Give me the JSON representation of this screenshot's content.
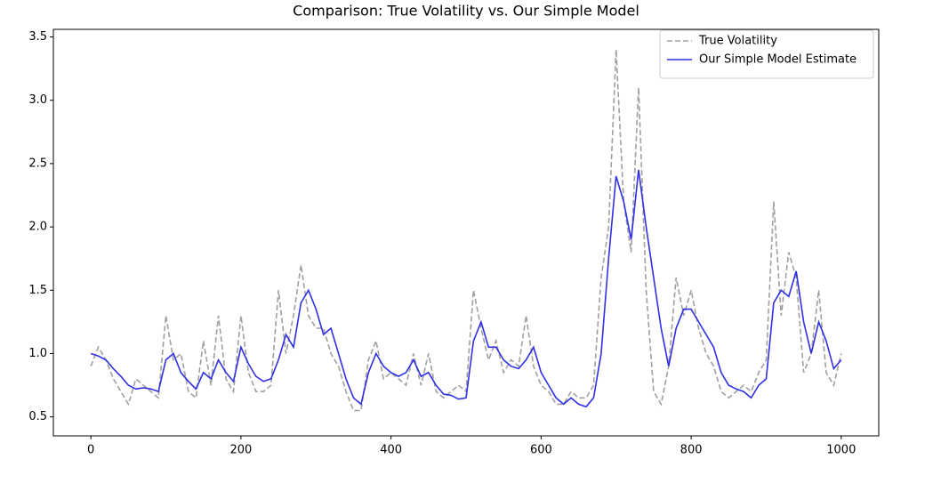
{
  "chart_data": {
    "type": "line",
    "title": "Comparison: True Volatility vs. Our Simple Model",
    "x": [
      0,
      10,
      20,
      30,
      40,
      50,
      60,
      70,
      80,
      90,
      100,
      110,
      120,
      130,
      140,
      150,
      160,
      170,
      180,
      190,
      200,
      210,
      220,
      230,
      240,
      250,
      260,
      270,
      280,
      290,
      300,
      310,
      320,
      330,
      340,
      350,
      360,
      370,
      380,
      390,
      400,
      410,
      420,
      430,
      440,
      450,
      460,
      470,
      480,
      490,
      500,
      510,
      520,
      530,
      540,
      550,
      560,
      570,
      580,
      590,
      600,
      610,
      620,
      630,
      640,
      650,
      660,
      670,
      680,
      690,
      700,
      710,
      720,
      730,
      740,
      750,
      760,
      770,
      780,
      790,
      800,
      810,
      820,
      830,
      840,
      850,
      860,
      870,
      880,
      890,
      900,
      910,
      920,
      930,
      940,
      950,
      960,
      970,
      980,
      990,
      1000
    ],
    "series": [
      {
        "name": "True Volatility",
        "color": "#a0a0a0",
        "linestyle": "dashed",
        "values": [
          0.9,
          1.05,
          0.95,
          0.8,
          0.7,
          0.6,
          0.8,
          0.75,
          0.7,
          0.65,
          1.3,
          0.95,
          1.0,
          0.7,
          0.65,
          1.1,
          0.75,
          1.3,
          0.8,
          0.7,
          1.3,
          0.85,
          0.7,
          0.7,
          0.75,
          1.5,
          1.0,
          1.3,
          1.7,
          1.3,
          1.2,
          1.2,
          1.0,
          0.9,
          0.7,
          0.55,
          0.55,
          0.95,
          1.1,
          0.8,
          0.85,
          0.8,
          0.75,
          1.0,
          0.75,
          1.0,
          0.7,
          0.65,
          0.7,
          0.75,
          0.7,
          1.5,
          1.2,
          0.95,
          1.1,
          0.85,
          0.95,
          0.9,
          1.3,
          0.9,
          0.75,
          0.7,
          0.6,
          0.6,
          0.7,
          0.65,
          0.65,
          0.75,
          1.6,
          2.0,
          3.4,
          2.2,
          1.8,
          3.1,
          1.5,
          0.7,
          0.6,
          0.9,
          1.6,
          1.3,
          1.5,
          1.2,
          1.0,
          0.9,
          0.7,
          0.65,
          0.7,
          0.75,
          0.7,
          0.85,
          0.95,
          2.2,
          1.3,
          1.8,
          1.6,
          0.85,
          1.0,
          1.5,
          0.85,
          0.75,
          1.0
        ]
      },
      {
        "name": "Our Simple Model Estimate",
        "color": "#2f2fe6",
        "linestyle": "solid",
        "values": [
          1.0,
          0.98,
          0.95,
          0.88,
          0.82,
          0.75,
          0.72,
          0.73,
          0.72,
          0.7,
          0.95,
          1.0,
          0.85,
          0.78,
          0.72,
          0.85,
          0.8,
          0.95,
          0.85,
          0.78,
          1.05,
          0.92,
          0.82,
          0.78,
          0.8,
          0.95,
          1.15,
          1.05,
          1.4,
          1.5,
          1.35,
          1.15,
          1.2,
          1.0,
          0.8,
          0.65,
          0.6,
          0.85,
          1.0,
          0.9,
          0.85,
          0.82,
          0.85,
          0.95,
          0.82,
          0.85,
          0.75,
          0.68,
          0.67,
          0.64,
          0.65,
          1.1,
          1.25,
          1.05,
          1.05,
          0.95,
          0.9,
          0.88,
          0.95,
          1.05,
          0.85,
          0.75,
          0.65,
          0.6,
          0.65,
          0.6,
          0.58,
          0.65,
          1.0,
          1.75,
          2.4,
          2.2,
          1.9,
          2.45,
          2.0,
          1.6,
          1.2,
          0.9,
          1.2,
          1.35,
          1.35,
          1.25,
          1.15,
          1.05,
          0.85,
          0.75,
          0.72,
          0.7,
          0.65,
          0.75,
          0.8,
          1.4,
          1.5,
          1.45,
          1.65,
          1.25,
          1.0,
          1.25,
          1.1,
          0.88,
          0.95
        ]
      }
    ],
    "xlim": [
      -50,
      1050
    ],
    "ylim": [
      0.35,
      3.56
    ],
    "xticks": [
      0,
      200,
      400,
      600,
      800,
      1000
    ],
    "yticks": [
      {
        "value": 0.5,
        "label": "0.5"
      },
      {
        "value": 1,
        "label": "1.0"
      },
      {
        "value": 1.5,
        "label": "1.5"
      },
      {
        "value": 2,
        "label": "2.0"
      },
      {
        "value": 2.5,
        "label": "2.5"
      },
      {
        "value": 3,
        "label": "3.0"
      },
      {
        "value": 3.5,
        "label": "3.5"
      }
    ],
    "legend": "upper right"
  }
}
